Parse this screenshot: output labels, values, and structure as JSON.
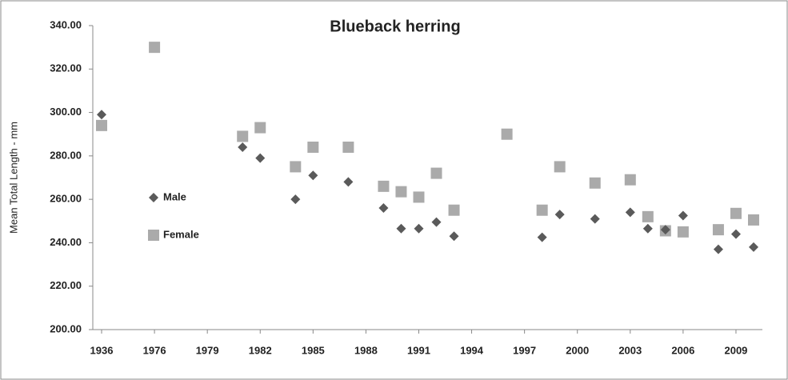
{
  "chart_data": {
    "type": "scatter",
    "title": "Blueback herring",
    "y_label": "Mean Total Length - mm",
    "categories": [
      "1936",
      null,
      null,
      "1976",
      null,
      null,
      "1979",
      null,
      null,
      "1982",
      null,
      null,
      "1985",
      null,
      null,
      "1988",
      null,
      null,
      "1991",
      null,
      null,
      "1994",
      null,
      null,
      "1997",
      null,
      null,
      "2000",
      null,
      null,
      "2003",
      null,
      null,
      "2006",
      null,
      null,
      "2009",
      null
    ],
    "series": [
      {
        "name": "Male",
        "color": "#5a5a5a",
        "marker": "diamond",
        "values": [
          299,
          null,
          null,
          null,
          null,
          null,
          null,
          null,
          284,
          279,
          null,
          260,
          271,
          null,
          268,
          null,
          256,
          246.5,
          246.5,
          249.5,
          243,
          null,
          null,
          null,
          null,
          242.5,
          253,
          null,
          251,
          null,
          254,
          246.5,
          246,
          252.5,
          null,
          237,
          244,
          238
        ]
      },
      {
        "name": "Female",
        "color": "#aaaaaa",
        "marker": "square",
        "values": [
          294,
          null,
          null,
          330,
          null,
          null,
          null,
          null,
          289,
          293,
          null,
          275,
          284,
          null,
          284,
          null,
          266,
          263.5,
          261,
          272,
          255,
          null,
          null,
          290,
          null,
          255,
          275,
          null,
          267.5,
          null,
          269,
          252,
          245.5,
          245,
          null,
          246,
          253.5,
          250.5
        ]
      }
    ],
    "ylim": [
      200,
      340
    ],
    "yticks": [
      {
        "value": 200,
        "label": "200.00"
      },
      {
        "value": 220,
        "label": "220.00"
      },
      {
        "value": 240,
        "label": "240.00"
      },
      {
        "value": 260,
        "label": "260.00"
      },
      {
        "value": 280,
        "label": "280.00"
      },
      {
        "value": 300,
        "label": "300.00"
      },
      {
        "value": 320,
        "label": "320.00"
      },
      {
        "value": 340,
        "label": "340.00"
      }
    ],
    "grid": false,
    "legend": "left"
  }
}
